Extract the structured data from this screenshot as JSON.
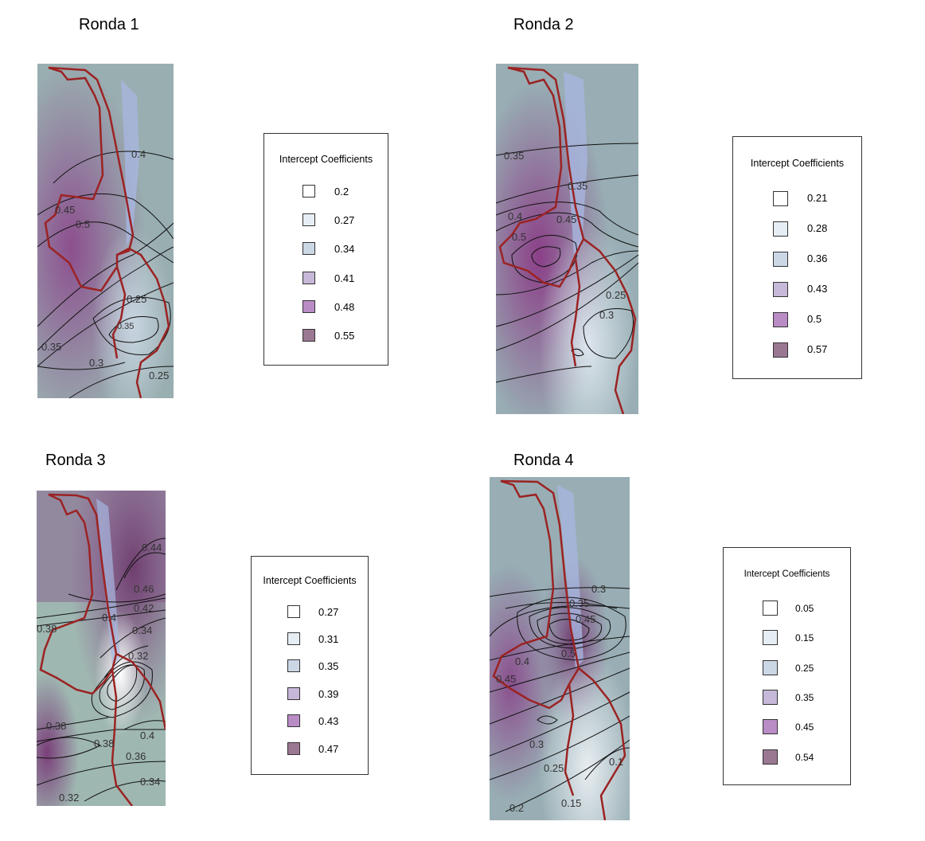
{
  "panels": [
    {
      "title": "Ronda 1",
      "contour_labels": [
        "0.4",
        "0.45",
        "0.5",
        "0.25",
        "0.35",
        "0.35",
        "0.3",
        "0.25"
      ],
      "legend": {
        "title": "Intercept Coefficients",
        "values": [
          "0.2",
          "0.27",
          "0.34",
          "0.41",
          "0.48",
          "0.55"
        ]
      }
    },
    {
      "title": "Ronda 2",
      "contour_labels": [
        "0.35",
        "0.35",
        "0.4",
        "0.45",
        "0.5",
        "0.25",
        "0.3"
      ],
      "legend": {
        "title": "Intercept Coefficients",
        "values": [
          "0.21",
          "0.28",
          "0.36",
          "0.43",
          "0.5",
          "0.57"
        ]
      }
    },
    {
      "title": "Ronda 3",
      "contour_labels": [
        "0.44",
        "0.46",
        "0.42",
        "0.4",
        "0.38",
        "0.34",
        "0.32",
        "0.38",
        "0.38",
        "0.4",
        "0.36",
        "0.34",
        "0.32"
      ],
      "legend": {
        "title": "Intercept Coefficients",
        "values": [
          "0.27",
          "0.31",
          "0.35",
          "0.39",
          "0.43",
          "0.47"
        ]
      }
    },
    {
      "title": "Ronda 4",
      "contour_labels": [
        "0.3",
        "0.35",
        "0.45",
        "0.4",
        "0.45",
        "0.5",
        "0.3",
        "0.25",
        "0.1",
        "0.2",
        "0.15"
      ],
      "legend": {
        "title": "Intercept Coefficients",
        "values": [
          "0.05",
          "0.15",
          "0.25",
          "0.35",
          "0.45",
          "0.54"
        ]
      }
    }
  ],
  "colors": {
    "ramp": [
      "#ffffff",
      "#e6eef3",
      "#ccd7e6",
      "#c6b8d8",
      "#b98cc6",
      "#9b7892"
    ],
    "border": "#9b2323",
    "lake": "#9fb0d8",
    "terrain": "#9bb3ad"
  }
}
